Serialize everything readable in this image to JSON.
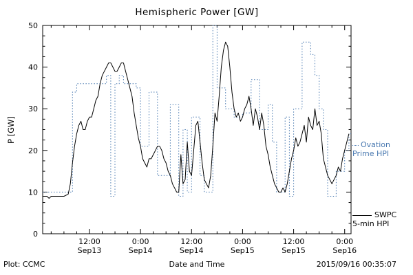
{
  "footer": {
    "left": "Plot: CCMC",
    "right": "2015/09/16 00:35:07"
  },
  "chart_data": {
    "type": "line",
    "title": "Hemispheric Power [GW]",
    "xlabel": "Date and Time",
    "ylabel": "P [GW]",
    "x_unit": "hours since Sep13 00:00",
    "xlim": [
      1,
      73.5
    ],
    "ylim": [
      0,
      50
    ],
    "grid": false,
    "legend_position": "right-outside",
    "y_ticks": [
      0,
      10,
      20,
      30,
      40,
      50
    ],
    "y_minor_step": 2.5,
    "x_minor_step": 3,
    "x_ticks": [
      {
        "t": 12,
        "time": "12:00",
        "date": "Sep13"
      },
      {
        "t": 24,
        "time": "0:00",
        "date": "Sep14"
      },
      {
        "t": 36,
        "time": "12:00",
        "date": "Sep14"
      },
      {
        "t": 48,
        "time": "0:00",
        "date": "Sep15"
      },
      {
        "t": 60,
        "time": "12:00",
        "date": "Sep15"
      },
      {
        "t": 72,
        "time": "0:00",
        "date": "Sep16"
      }
    ],
    "series": [
      {
        "name": "Ovation Prime HPI",
        "legend1": "Ovation",
        "legend2": "Prime HPI",
        "color": "#4878b0",
        "style": "dotted-step",
        "data_name": "ovation-series-line",
        "t_start": 1,
        "dt": 1,
        "values": [
          10,
          10,
          10,
          10,
          10,
          10,
          10,
          34,
          36,
          36,
          36,
          36,
          36,
          36,
          36,
          38,
          9,
          36,
          38,
          36,
          36,
          36,
          35,
          21,
          21,
          34,
          34,
          14,
          14,
          14,
          31,
          31,
          9,
          25,
          10,
          28,
          28,
          14,
          10,
          10,
          50,
          35,
          35,
          30,
          30,
          28,
          28,
          29,
          29,
          37,
          37,
          25,
          25,
          31,
          22,
          10,
          10,
          28,
          9,
          30,
          30,
          46,
          46,
          43,
          38,
          30,
          25,
          9,
          9,
          15,
          15,
          20,
          24
        ]
      },
      {
        "name": "SWPC 5-min HPI",
        "legend1": "SWPC",
        "legend2": "5-min HPI",
        "color": "#000000",
        "style": "solid",
        "data_name": "swpc-series-line",
        "points": [
          [
            1,
            9
          ],
          [
            2,
            9
          ],
          [
            2.5,
            8.5
          ],
          [
            3,
            9
          ],
          [
            4,
            9
          ],
          [
            5,
            9
          ],
          [
            6,
            9
          ],
          [
            7,
            9.5
          ],
          [
            7.5,
            12
          ],
          [
            8,
            17
          ],
          [
            8.5,
            21
          ],
          [
            9,
            24
          ],
          [
            9.5,
            26
          ],
          [
            10,
            27
          ],
          [
            10.5,
            25
          ],
          [
            11,
            25
          ],
          [
            11.5,
            27
          ],
          [
            12,
            28
          ],
          [
            12.5,
            28
          ],
          [
            13,
            30
          ],
          [
            13.5,
            32
          ],
          [
            14,
            33
          ],
          [
            14.5,
            36
          ],
          [
            15,
            38
          ],
          [
            15.5,
            39
          ],
          [
            16,
            40
          ],
          [
            16.5,
            41
          ],
          [
            17,
            41
          ],
          [
            17.5,
            40
          ],
          [
            18,
            39
          ],
          [
            18.5,
            39
          ],
          [
            19,
            40
          ],
          [
            19.5,
            41
          ],
          [
            20,
            41
          ],
          [
            20.5,
            39
          ],
          [
            21,
            37
          ],
          [
            21.5,
            35
          ],
          [
            22,
            33
          ],
          [
            22.5,
            29
          ],
          [
            23,
            26
          ],
          [
            23.5,
            23
          ],
          [
            24,
            21
          ],
          [
            24.5,
            18
          ],
          [
            25,
            17
          ],
          [
            25.5,
            16
          ],
          [
            26,
            18
          ],
          [
            26.5,
            18
          ],
          [
            27,
            19
          ],
          [
            27.5,
            20
          ],
          [
            28,
            21
          ],
          [
            28.5,
            21
          ],
          [
            29,
            20
          ],
          [
            29.5,
            18
          ],
          [
            30,
            17
          ],
          [
            30.5,
            15
          ],
          [
            31,
            14
          ],
          [
            31.5,
            12
          ],
          [
            32,
            11
          ],
          [
            32.5,
            10
          ],
          [
            33,
            10
          ],
          [
            33.5,
            19
          ],
          [
            34,
            12
          ],
          [
            34.5,
            13
          ],
          [
            35,
            22
          ],
          [
            35.5,
            15
          ],
          [
            36,
            14
          ],
          [
            36.5,
            20
          ],
          [
            37,
            26
          ],
          [
            37.5,
            27
          ],
          [
            38,
            22
          ],
          [
            38.5,
            17
          ],
          [
            39,
            13
          ],
          [
            39.5,
            12
          ],
          [
            40,
            11
          ],
          [
            40.5,
            14
          ],
          [
            41,
            21
          ],
          [
            41.5,
            29
          ],
          [
            42,
            27
          ],
          [
            42.5,
            33
          ],
          [
            43,
            40
          ],
          [
            43.5,
            44
          ],
          [
            44,
            46
          ],
          [
            44.5,
            45
          ],
          [
            45,
            40
          ],
          [
            45.5,
            34
          ],
          [
            46,
            30
          ],
          [
            46.5,
            28
          ],
          [
            47,
            29
          ],
          [
            47.5,
            27
          ],
          [
            48,
            28
          ],
          [
            48.5,
            30
          ],
          [
            49,
            31
          ],
          [
            49.5,
            33
          ],
          [
            50,
            30
          ],
          [
            50.5,
            26
          ],
          [
            51,
            30
          ],
          [
            51.5,
            28
          ],
          [
            52,
            25
          ],
          [
            52.5,
            29
          ],
          [
            53,
            26
          ],
          [
            53.5,
            21
          ],
          [
            54,
            19
          ],
          [
            54.5,
            16
          ],
          [
            55,
            14
          ],
          [
            55.5,
            12
          ],
          [
            56,
            11
          ],
          [
            56.5,
            10
          ],
          [
            57,
            10
          ],
          [
            57.5,
            11
          ],
          [
            58,
            10
          ],
          [
            58.5,
            12
          ],
          [
            59,
            15
          ],
          [
            59.5,
            18
          ],
          [
            60,
            20
          ],
          [
            60.5,
            23
          ],
          [
            61,
            21
          ],
          [
            61.5,
            22
          ],
          [
            62,
            24
          ],
          [
            62.5,
            26
          ],
          [
            63,
            22
          ],
          [
            63.5,
            28
          ],
          [
            64,
            26
          ],
          [
            64.5,
            25
          ],
          [
            65,
            30
          ],
          [
            65.5,
            26
          ],
          [
            66,
            27
          ],
          [
            66.5,
            24
          ],
          [
            67,
            18
          ],
          [
            67.5,
            16
          ],
          [
            68,
            14
          ],
          [
            68.5,
            13
          ],
          [
            69,
            12
          ],
          [
            69.5,
            13
          ],
          [
            70,
            14
          ],
          [
            70.5,
            16
          ],
          [
            71,
            15
          ],
          [
            71.5,
            18
          ],
          [
            72,
            20
          ],
          [
            72.5,
            22
          ],
          [
            73,
            24
          ]
        ]
      }
    ]
  }
}
